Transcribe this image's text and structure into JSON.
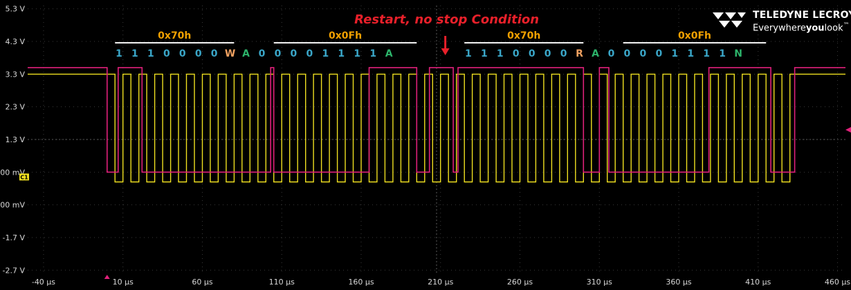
{
  "brand": {
    "name": "TELEDYNE LECROY",
    "tagline_prefix": "Everywhere",
    "tagline_bold": "you",
    "tagline_suffix": "look",
    "tm": "™"
  },
  "chart_data": {
    "type": "line",
    "title": "Restart, no stop Condition",
    "title_color": "#e8202a",
    "xlabel": "",
    "ylabel": "",
    "xlim": [
      -50,
      465
    ],
    "ylim": [
      -2.8,
      5.4
    ],
    "grid": true,
    "y_ticks": [
      {
        "value": 5.3,
        "label": "5.3 V"
      },
      {
        "value": 4.3,
        "label": "4.3 V"
      },
      {
        "value": 3.3,
        "label": "3.3 V"
      },
      {
        "value": 2.3,
        "label": "2.3 V"
      },
      {
        "value": 1.3,
        "label": "1.3 V"
      },
      {
        "value": 0.3,
        "label": "300 mV"
      },
      {
        "value": -0.7,
        "label": "-700 mV"
      },
      {
        "value": -1.7,
        "label": "-1.7 V"
      },
      {
        "value": -2.7,
        "label": "-2.7 V"
      }
    ],
    "x_ticks": [
      {
        "value": -40,
        "label": "-40 µs"
      },
      {
        "value": 10,
        "label": "10 µs"
      },
      {
        "value": 60,
        "label": "60 µs"
      },
      {
        "value": 110,
        "label": "110 µs"
      },
      {
        "value": 160,
        "label": "160 µs"
      },
      {
        "value": 210,
        "label": "210 µs"
      },
      {
        "value": 260,
        "label": "260 µs"
      },
      {
        "value": 310,
        "label": "310 µs"
      },
      {
        "value": 360,
        "label": "360 µs"
      },
      {
        "value": 410,
        "label": "410 µs"
      },
      {
        "value": 460,
        "label": "460 µs"
      }
    ],
    "channel_marker": "C1",
    "series": [
      {
        "color": "#f0e020",
        "high": 3.3,
        "low": 0.0,
        "steps": [
          [
            -50,
            3.3
          ],
          [
            5,
            3.3
          ],
          [
            5,
            0
          ],
          [
            10,
            0
          ],
          [
            10,
            3.3
          ],
          [
            15,
            3.3
          ],
          [
            15,
            0
          ],
          [
            20,
            0
          ],
          [
            20,
            3.3
          ],
          [
            25,
            3.3
          ],
          [
            25,
            0
          ],
          [
            30,
            0
          ],
          [
            30,
            3.3
          ],
          [
            35,
            3.3
          ],
          [
            35,
            0
          ],
          [
            40,
            0
          ],
          [
            40,
            3.3
          ],
          [
            45,
            3.3
          ],
          [
            45,
            0
          ],
          [
            50,
            0
          ],
          [
            50,
            3.3
          ],
          [
            55,
            3.3
          ],
          [
            55,
            0
          ],
          [
            60,
            0
          ],
          [
            60,
            3.3
          ],
          [
            65,
            3.3
          ],
          [
            65,
            0
          ],
          [
            70,
            0
          ],
          [
            70,
            3.3
          ],
          [
            75,
            3.3
          ],
          [
            75,
            0
          ],
          [
            80,
            0
          ],
          [
            80,
            3.3
          ],
          [
            85,
            3.3
          ],
          [
            85,
            0
          ],
          [
            90,
            0
          ],
          [
            90,
            3.3
          ],
          [
            95,
            3.3
          ],
          [
            95,
            0
          ],
          [
            100,
            0
          ],
          [
            100,
            3.3
          ],
          [
            105,
            3.3
          ],
          [
            105,
            0
          ],
          [
            110,
            0
          ],
          [
            110,
            3.3
          ],
          [
            115,
            3.3
          ],
          [
            115,
            0
          ],
          [
            120,
            0
          ],
          [
            120,
            3.3
          ],
          [
            125,
            3.3
          ],
          [
            125,
            0
          ],
          [
            130,
            0
          ],
          [
            130,
            3.3
          ],
          [
            135,
            3.3
          ],
          [
            135,
            0
          ],
          [
            140,
            0
          ],
          [
            140,
            3.3
          ],
          [
            145,
            3.3
          ],
          [
            145,
            0
          ],
          [
            150,
            0
          ],
          [
            150,
            3.3
          ],
          [
            155,
            3.3
          ],
          [
            155,
            0
          ],
          [
            160,
            0
          ],
          [
            160,
            3.3
          ],
          [
            165,
            3.3
          ],
          [
            165,
            0
          ],
          [
            170,
            0
          ],
          [
            170,
            3.3
          ],
          [
            175,
            3.3
          ],
          [
            175,
            0
          ],
          [
            180,
            0
          ],
          [
            180,
            3.3
          ],
          [
            185,
            3.3
          ],
          [
            185,
            0
          ],
          [
            190,
            0
          ],
          [
            190,
            3.3
          ],
          [
            195,
            3.3
          ],
          [
            195,
            0
          ],
          [
            200,
            0
          ],
          [
            200,
            3.3
          ],
          [
            205,
            3.3
          ],
          [
            205,
            0
          ],
          [
            210,
            0
          ],
          [
            210,
            3.3
          ],
          [
            215,
            3.3
          ],
          [
            215,
            0
          ],
          [
            220,
            0
          ],
          [
            220,
            3.3
          ],
          [
            225,
            3.3
          ],
          [
            225,
            0
          ],
          [
            230,
            0
          ],
          [
            230,
            3.3
          ],
          [
            235,
            3.3
          ],
          [
            235,
            0
          ],
          [
            240,
            0
          ],
          [
            240,
            3.3
          ],
          [
            245,
            3.3
          ],
          [
            245,
            0
          ],
          [
            250,
            0
          ],
          [
            250,
            3.3
          ],
          [
            255,
            3.3
          ],
          [
            255,
            0
          ],
          [
            260,
            0
          ],
          [
            260,
            3.3
          ],
          [
            265,
            3.3
          ],
          [
            265,
            0
          ],
          [
            270,
            0
          ],
          [
            270,
            3.3
          ],
          [
            275,
            3.3
          ],
          [
            275,
            0
          ],
          [
            280,
            0
          ],
          [
            280,
            3.3
          ],
          [
            285,
            3.3
          ],
          [
            285,
            0
          ],
          [
            290,
            0
          ],
          [
            290,
            3.3
          ],
          [
            295,
            3.3
          ],
          [
            295,
            0
          ],
          [
            300,
            0
          ],
          [
            300,
            3.3
          ],
          [
            305,
            3.3
          ],
          [
            305,
            0
          ],
          [
            310,
            0
          ],
          [
            310,
            3.3
          ],
          [
            315,
            3.3
          ],
          [
            315,
            0
          ],
          [
            320,
            0
          ],
          [
            320,
            3.3
          ],
          [
            325,
            3.3
          ],
          [
            325,
            0
          ],
          [
            330,
            0
          ],
          [
            330,
            3.3
          ],
          [
            335,
            3.3
          ],
          [
            335,
            0
          ],
          [
            340,
            0
          ],
          [
            340,
            3.3
          ],
          [
            345,
            3.3
          ],
          [
            345,
            0
          ],
          [
            350,
            0
          ],
          [
            350,
            3.3
          ],
          [
            355,
            3.3
          ],
          [
            355,
            0
          ],
          [
            360,
            0
          ],
          [
            360,
            3.3
          ],
          [
            365,
            3.3
          ],
          [
            365,
            0
          ],
          [
            370,
            0
          ],
          [
            370,
            3.3
          ],
          [
            375,
            3.3
          ],
          [
            375,
            0
          ],
          [
            380,
            0
          ],
          [
            380,
            3.3
          ],
          [
            385,
            3.3
          ],
          [
            385,
            0
          ],
          [
            390,
            0
          ],
          [
            390,
            3.3
          ],
          [
            395,
            3.3
          ],
          [
            395,
            0
          ],
          [
            400,
            0
          ],
          [
            400,
            3.3
          ],
          [
            405,
            3.3
          ],
          [
            405,
            0
          ],
          [
            410,
            0
          ],
          [
            410,
            3.3
          ],
          [
            415,
            3.3
          ],
          [
            415,
            0
          ],
          [
            420,
            0
          ],
          [
            420,
            3.3
          ],
          [
            425,
            3.3
          ],
          [
            425,
            0
          ],
          [
            430,
            0
          ],
          [
            430,
            3.3
          ],
          [
            465,
            3.3
          ]
        ]
      },
      {
        "color": "#e0207a",
        "high": 3.5,
        "low": 0.3,
        "steps": [
          [
            -50,
            3.5
          ],
          [
            0,
            3.5
          ],
          [
            0,
            0.3
          ],
          [
            7,
            0.3
          ],
          [
            7,
            3.5
          ],
          [
            22,
            3.5
          ],
          [
            22,
            0.3
          ],
          [
            60,
            0.3
          ],
          [
            60,
            0.3
          ],
          [
            103,
            0.3
          ],
          [
            103,
            3.5
          ],
          [
            105,
            3.5
          ],
          [
            105,
            0.3
          ],
          [
            165,
            0.3
          ],
          [
            165,
            3.5
          ],
          [
            195,
            3.5
          ],
          [
            195,
            0.3
          ],
          [
            203,
            0.3
          ],
          [
            203,
            3.5
          ],
          [
            208,
            3.5
          ],
          [
            208,
            3.5
          ],
          [
            218,
            3.5
          ],
          [
            218,
            0.3
          ],
          [
            221,
            0.3
          ],
          [
            221,
            3.5
          ],
          [
            300,
            3.5
          ],
          [
            300,
            0.3
          ],
          [
            310,
            0.3
          ],
          [
            310,
            3.5
          ],
          [
            316,
            3.5
          ],
          [
            316,
            0.3
          ],
          [
            369,
            0.3
          ],
          [
            369,
            0.3
          ],
          [
            379,
            0.3
          ],
          [
            379,
            3.5
          ],
          [
            418,
            3.5
          ],
          [
            418,
            0.3
          ],
          [
            433,
            0.3
          ],
          [
            433,
            3.5
          ],
          [
            465,
            3.5
          ]
        ]
      }
    ],
    "annotations": {
      "bytes": [
        {
          "label": "0x70h",
          "x_start": 5,
          "x_end": 80
        },
        {
          "label": "0x0Fh",
          "x_start": 105,
          "x_end": 195
        },
        {
          "label": "0x70h",
          "x_start": 225,
          "x_end": 300
        },
        {
          "label": "0x0Fh",
          "x_start": 325,
          "x_end": 415
        }
      ],
      "bits": [
        {
          "label": "1",
          "x": 7.5,
          "color": "#3aa6c8"
        },
        {
          "label": "1",
          "x": 17.5,
          "color": "#3aa6c8"
        },
        {
          "label": "1",
          "x": 27.5,
          "color": "#3aa6c8"
        },
        {
          "label": "0",
          "x": 37.5,
          "color": "#3aa6c8"
        },
        {
          "label": "0",
          "x": 47.5,
          "color": "#3aa6c8"
        },
        {
          "label": "0",
          "x": 57.5,
          "color": "#3aa6c8"
        },
        {
          "label": "0",
          "x": 67.5,
          "color": "#3aa6c8"
        },
        {
          "label": "W",
          "x": 77.5,
          "color": "#f0a060"
        },
        {
          "label": "A",
          "x": 87.5,
          "color": "#2cb36a"
        },
        {
          "label": "0",
          "x": 97.5,
          "color": "#3aa6c8"
        },
        {
          "label": "0",
          "x": 107.5,
          "color": "#3aa6c8"
        },
        {
          "label": "0",
          "x": 117.5,
          "color": "#3aa6c8"
        },
        {
          "label": "0",
          "x": 127.5,
          "color": "#3aa6c8"
        },
        {
          "label": "1",
          "x": 137.5,
          "color": "#3aa6c8"
        },
        {
          "label": "1",
          "x": 147.5,
          "color": "#3aa6c8"
        },
        {
          "label": "1",
          "x": 157.5,
          "color": "#3aa6c8"
        },
        {
          "label": "1",
          "x": 167.5,
          "color": "#3aa6c8"
        },
        {
          "label": "A",
          "x": 177.5,
          "color": "#2cb36a"
        },
        {
          "label": "1",
          "x": 227.5,
          "color": "#3aa6c8"
        },
        {
          "label": "1",
          "x": 237.5,
          "color": "#3aa6c8"
        },
        {
          "label": "1",
          "x": 247.5,
          "color": "#3aa6c8"
        },
        {
          "label": "0",
          "x": 257.5,
          "color": "#3aa6c8"
        },
        {
          "label": "0",
          "x": 267.5,
          "color": "#3aa6c8"
        },
        {
          "label": "0",
          "x": 277.5,
          "color": "#3aa6c8"
        },
        {
          "label": "0",
          "x": 287.5,
          "color": "#3aa6c8"
        },
        {
          "label": "R",
          "x": 297.5,
          "color": "#f0a060"
        },
        {
          "label": "A",
          "x": 307.5,
          "color": "#2cb36a"
        },
        {
          "label": "0",
          "x": 317.5,
          "color": "#3aa6c8"
        },
        {
          "label": "0",
          "x": 327.5,
          "color": "#3aa6c8"
        },
        {
          "label": "0",
          "x": 337.5,
          "color": "#3aa6c8"
        },
        {
          "label": "0",
          "x": 347.5,
          "color": "#3aa6c8"
        },
        {
          "label": "1",
          "x": 357.5,
          "color": "#3aa6c8"
        },
        {
          "label": "1",
          "x": 367.5,
          "color": "#3aa6c8"
        },
        {
          "label": "1",
          "x": 377.5,
          "color": "#3aa6c8"
        },
        {
          "label": "1",
          "x": 387.5,
          "color": "#3aa6c8"
        },
        {
          "label": "N",
          "x": 397.5,
          "color": "#2cb36a"
        }
      ],
      "arrow_x": 213,
      "byte_color": "#f0a000"
    }
  }
}
